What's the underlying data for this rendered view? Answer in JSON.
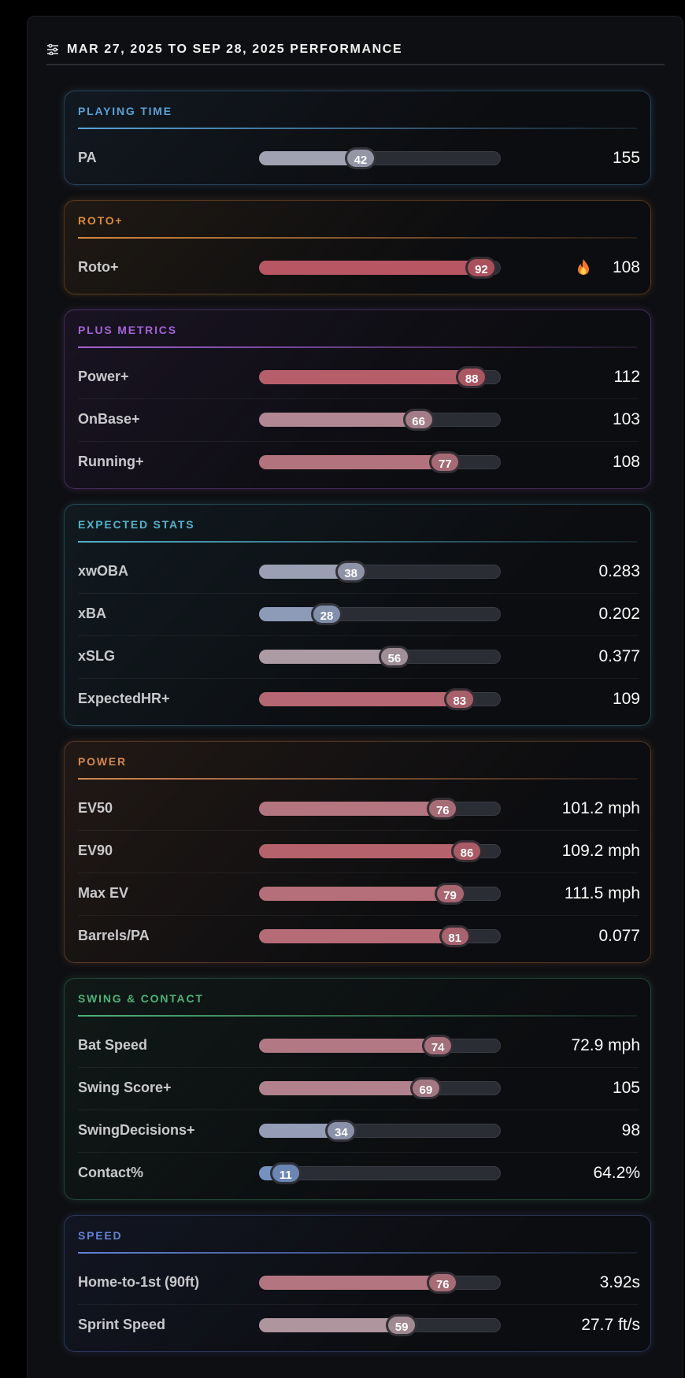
{
  "header": {
    "title": "MAR 27, 2025 TO SEP 28, 2025 PERFORMANCE"
  },
  "sections": [
    {
      "title": "PLAYING TIME",
      "metrics": [
        {
          "label": "PA",
          "percentile": 42,
          "value": "155"
        }
      ]
    },
    {
      "title": "ROTO+",
      "metrics": [
        {
          "label": "Roto+",
          "percentile": 92,
          "value": "108"
        }
      ]
    },
    {
      "title": "PLUS METRICS",
      "metrics": [
        {
          "label": "Power+",
          "percentile": 88,
          "value": "112"
        },
        {
          "label": "OnBase+",
          "percentile": 66,
          "value": "103"
        },
        {
          "label": "Running+",
          "percentile": 77,
          "value": "108"
        }
      ]
    },
    {
      "title": "EXPECTED STATS",
      "metrics": [
        {
          "label": "xwOBA",
          "percentile": 38,
          "value": "0.283"
        },
        {
          "label": "xBA",
          "percentile": 28,
          "value": "0.202"
        },
        {
          "label": "xSLG",
          "percentile": 56,
          "value": "0.377"
        },
        {
          "label": "ExpectedHR+",
          "percentile": 83,
          "value": "109"
        }
      ]
    },
    {
      "title": "POWER",
      "metrics": [
        {
          "label": "EV50",
          "percentile": 76,
          "value": "101.2 mph"
        },
        {
          "label": "EV90",
          "percentile": 86,
          "value": "109.2 mph"
        },
        {
          "label": "Max EV",
          "percentile": 79,
          "value": "111.5 mph"
        },
        {
          "label": "Barrels/PA",
          "percentile": 81,
          "value": "0.077"
        }
      ]
    },
    {
      "title": "SWING & CONTACT",
      "metrics": [
        {
          "label": "Bat Speed",
          "percentile": 74,
          "value": "72.9 mph"
        },
        {
          "label": "Swing Score+",
          "percentile": 69,
          "value": "105"
        },
        {
          "label": "SwingDecisions+",
          "percentile": 34,
          "value": "98"
        },
        {
          "label": "Contact%",
          "percentile": 11,
          "value": "64.2%"
        }
      ]
    },
    {
      "title": "SPEED",
      "metrics": [
        {
          "label": "Home-to-1st (90ft)",
          "percentile": 76,
          "value": "3.92s"
        },
        {
          "label": "Sprint Speed",
          "percentile": 59,
          "value": "27.7 ft/s"
        }
      ]
    }
  ]
}
